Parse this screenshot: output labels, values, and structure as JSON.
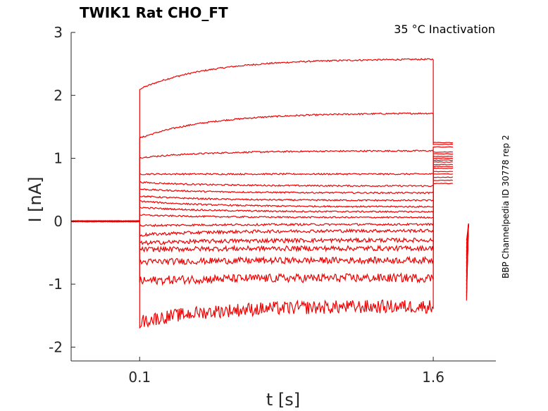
{
  "chart_data": {
    "type": "line",
    "title": "TWIK1  Rat  CHO_FT",
    "annotation": "35 °C  Inactivation",
    "side_label": "BBP Channelpedia ID 30778 rep 2",
    "xlabel": "t [s]",
    "ylabel": "I [nA]",
    "xlim": [
      -0.25,
      1.92
    ],
    "ylim": [
      -2.22,
      3.0
    ],
    "xticks": [
      0.1,
      1.6
    ],
    "xtick_labels": [
      "0.1",
      "1.6"
    ],
    "yticks": [
      -2,
      -1,
      0,
      1,
      2,
      3
    ],
    "ytick_labels": [
      "-2",
      "-1",
      "0",
      "1",
      "2",
      "3"
    ],
    "grid": false,
    "series_color": "#ee0000",
    "protocol": {
      "baseline_current": 0.0,
      "step_start": 0.1,
      "step_end": 1.6,
      "tail_start": 1.6,
      "tail_end": 1.7,
      "gap_end": 1.77,
      "recovery_end": 1.78
    },
    "series": [
      {
        "start": 2.1,
        "end": 2.58,
        "tail": 1.25
      },
      {
        "start": 1.32,
        "end": 1.72,
        "tail": 1.22
      },
      {
        "start": 1.01,
        "end": 1.12,
        "tail": 1.18
      },
      {
        "start": 0.75,
        "end": 0.75,
        "tail": 1.1
      },
      {
        "start": 0.62,
        "end": 0.56,
        "tail": 1.07
      },
      {
        "start": 0.51,
        "end": 0.45,
        "tail": 1.03
      },
      {
        "start": 0.4,
        "end": 0.33,
        "tail": 1.0
      },
      {
        "start": 0.32,
        "end": 0.23,
        "tail": 0.97
      },
      {
        "start": 0.22,
        "end": 0.15,
        "tail": 0.94
      },
      {
        "start": 0.1,
        "end": 0.06,
        "tail": 0.9
      },
      {
        "start": -0.07,
        "end": -0.05,
        "tail": 0.87
      },
      {
        "start": -0.22,
        "end": -0.15,
        "tail": 0.84
      },
      {
        "start": -0.35,
        "end": -0.3,
        "tail": 0.79
      },
      {
        "start": -0.45,
        "end": -0.43,
        "tail": 0.75
      },
      {
        "start": -0.65,
        "end": -0.62,
        "tail": 0.7
      },
      {
        "start": -0.95,
        "end": -0.9,
        "tail": 0.65
      },
      {
        "start": -1.6,
        "end": -1.35,
        "tail": 0.6
      }
    ]
  }
}
